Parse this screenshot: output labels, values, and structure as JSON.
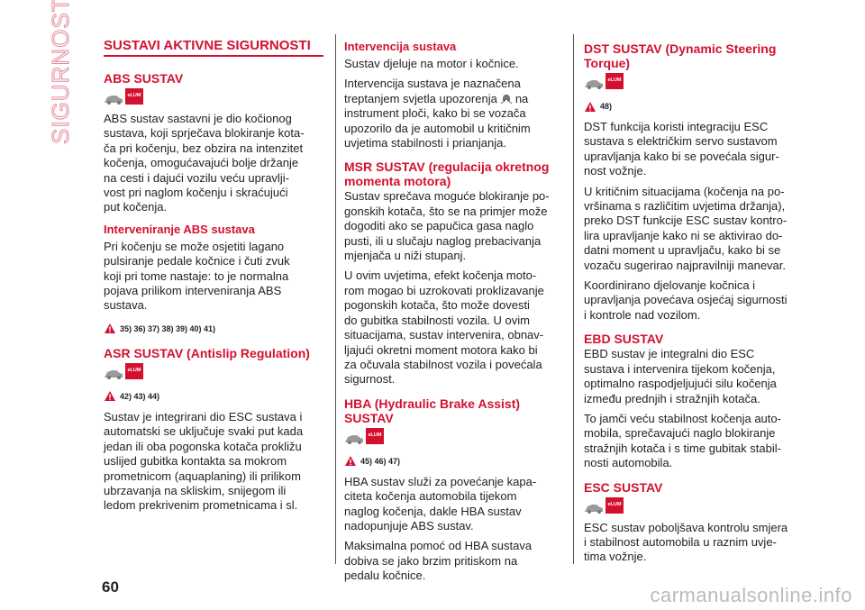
{
  "side_label": "SIGURNOST",
  "page_number": "60",
  "watermark": "carmanualsonline.info",
  "icon_label": "eLUM",
  "columns": [
    {
      "blocks": [
        {
          "kind": "h1",
          "lines": [
            "SUSTAVI AKTIVNE SIGURNOSTI"
          ]
        },
        {
          "kind": "h2",
          "lines": [
            "ABS SUSTAV"
          ]
        },
        {
          "kind": "icons"
        },
        {
          "kind": "p",
          "lines": [
            "ABS sustav sastavni je dio kočionog",
            "sustava, koji sprječava blokiranje kota-",
            "ča pri kočenju, bez obzira na intenzitet",
            "kočenja, omogućavajući bolje držanje",
            "na cesti i dajući vozilu veću upravlji-",
            "vost pri naglom kočenju i skraćujući",
            "put kočenja."
          ]
        },
        {
          "kind": "h3",
          "lines": [
            "Interveniranje ABS sustava"
          ]
        },
        {
          "kind": "p",
          "lines": [
            "Pri kočenju se može osjetiti lagano",
            "pulsiranje pedale kočnice i čuti zvuk",
            "koji pri tome nastaje: to je normalna",
            "pojava prilikom interveniranja ABS",
            "sustava."
          ]
        },
        {
          "kind": "warn",
          "text": "35) 36) 37) 38) 39) 40) 41)"
        },
        {
          "kind": "h2",
          "lines": [
            "ASR SUSTAV (Antislip Regulation)"
          ]
        },
        {
          "kind": "icons"
        },
        {
          "kind": "warn",
          "text": "42) 43) 44)"
        },
        {
          "kind": "p",
          "lines": [
            "Sustav je integrirani dio ESC sustava i",
            "automatski se uključuje svaki put kada",
            "jedan ili oba pogonska kotača prokližu",
            "uslijed gubitka kontakta sa mokrom",
            "prometnicom (aquaplaning) ili prilikom",
            "ubrzavanja na skliskim, snijegom ili",
            "ledom prekrivenim prometnicama i sl."
          ]
        }
      ]
    },
    {
      "blocks": [
        {
          "kind": "h3",
          "lines": [
            "Intervencija sustava"
          ]
        },
        {
          "kind": "p",
          "lines": [
            "Sustav djeluje na motor i kočnice."
          ]
        },
        {
          "kind": "p",
          "lines": [
            "Intervencija sustava je naznačena",
            {
              "before": "treptanjem svjetla upozorenja",
              "after": "na"
            },
            "instrument ploči, kako bi se vozača",
            "upozorilo da je automobil u kritičnim",
            "uvjetima stabilnosti i prianjanja."
          ]
        },
        {
          "kind": "h2",
          "lines": [
            "MSR SUSTAV (regulacija okretnog",
            "momenta motora)"
          ]
        },
        {
          "kind": "p",
          "lines": [
            "Sustav sprečava moguće blokiranje po-",
            "gonskih kotača, što se na primjer može",
            "dogoditi ako se papučica gasa naglo",
            "pusti, ili u slučaju naglog prebacivanja",
            "mjenjača u niži stupanj."
          ]
        },
        {
          "kind": "p",
          "lines": [
            "U ovim uvjetima, efekt kočenja moto-",
            "rom mogao bi uzrokovati proklizavanje",
            "pogonskih kotača, što može dovesti",
            "do gubitka stabilnosti vozila. U ovim",
            "situacijama, sustav intervenira, obnav-",
            "ljajući okretni moment motora kako bi",
            "za očuvala stabilnost vozila i povećala",
            "sigurnost."
          ]
        },
        {
          "kind": "h2",
          "lines": [
            "HBA (Hydraulic Brake Assist)",
            "SUSTAV"
          ]
        },
        {
          "kind": "icons"
        },
        {
          "kind": "warn",
          "text": "45) 46) 47)"
        },
        {
          "kind": "p",
          "lines": [
            "HBA sustav služi za povećanje kapa-",
            "citeta kočenja automobila tijekom",
            "naglog kočenja, dakle HBA sustav",
            "nadopunjuje ABS sustav."
          ]
        },
        {
          "kind": "p",
          "lines": [
            "Maksimalna pomoć od HBA sustava",
            "dobiva se jako brzim pritiskom na",
            "pedalu kočnice."
          ]
        }
      ]
    },
    {
      "blocks": [
        {
          "kind": "h2",
          "lines": [
            "DST SUSTAV (Dynamic Steering",
            "Torque)"
          ]
        },
        {
          "kind": "icons"
        },
        {
          "kind": "warn",
          "text": "48)"
        },
        {
          "kind": "p",
          "lines": [
            "DST funkcija koristi integraciju ESC",
            "sustava s električkim servo sustavom",
            "upravljanja kako bi se povećala sigur-",
            "nost vožnje."
          ]
        },
        {
          "kind": "p",
          "lines": [
            "U kritičnim situacijama (kočenja na po-",
            "vršinama s različitim uvjetima držanja),",
            "preko DST funkcije ESC sustav kontro-",
            "lira upravljanje kako ni se aktivirao do-",
            "datni moment u upravljaču, kako bi se",
            "vozaču sugerirao najpravilniji manevar."
          ]
        },
        {
          "kind": "p",
          "lines": [
            "Koordinirano djelovanje kočnica i",
            "upravljanja povećava osjećaj sigurnosti",
            "i kontrole nad vozilom."
          ]
        },
        {
          "kind": "h2",
          "lines": [
            "EBD SUSTAV"
          ]
        },
        {
          "kind": "p",
          "lines": [
            "EBD sustav je integralni dio ESC",
            "sustava i intervenira tijekom kočenja,",
            "optimalno raspodjeljujući silu kočenja",
            "između prednjih i stražnjih kotača."
          ]
        },
        {
          "kind": "p",
          "lines": [
            "To jamči veću stabilnost kočenja auto-",
            "mobila, sprečavajući naglo blokiranje",
            "stražnjih kotača i s time gubitak stabil-",
            "nosti automobila."
          ]
        },
        {
          "kind": "h2",
          "lines": [
            "ESC SUSTAV"
          ]
        },
        {
          "kind": "icons"
        },
        {
          "kind": "p",
          "lines": [
            "ESC sustav poboljšava kontrolu smjera",
            "i stabilnost automobila u raznim uvje-",
            "tima vožnje."
          ]
        }
      ]
    }
  ]
}
